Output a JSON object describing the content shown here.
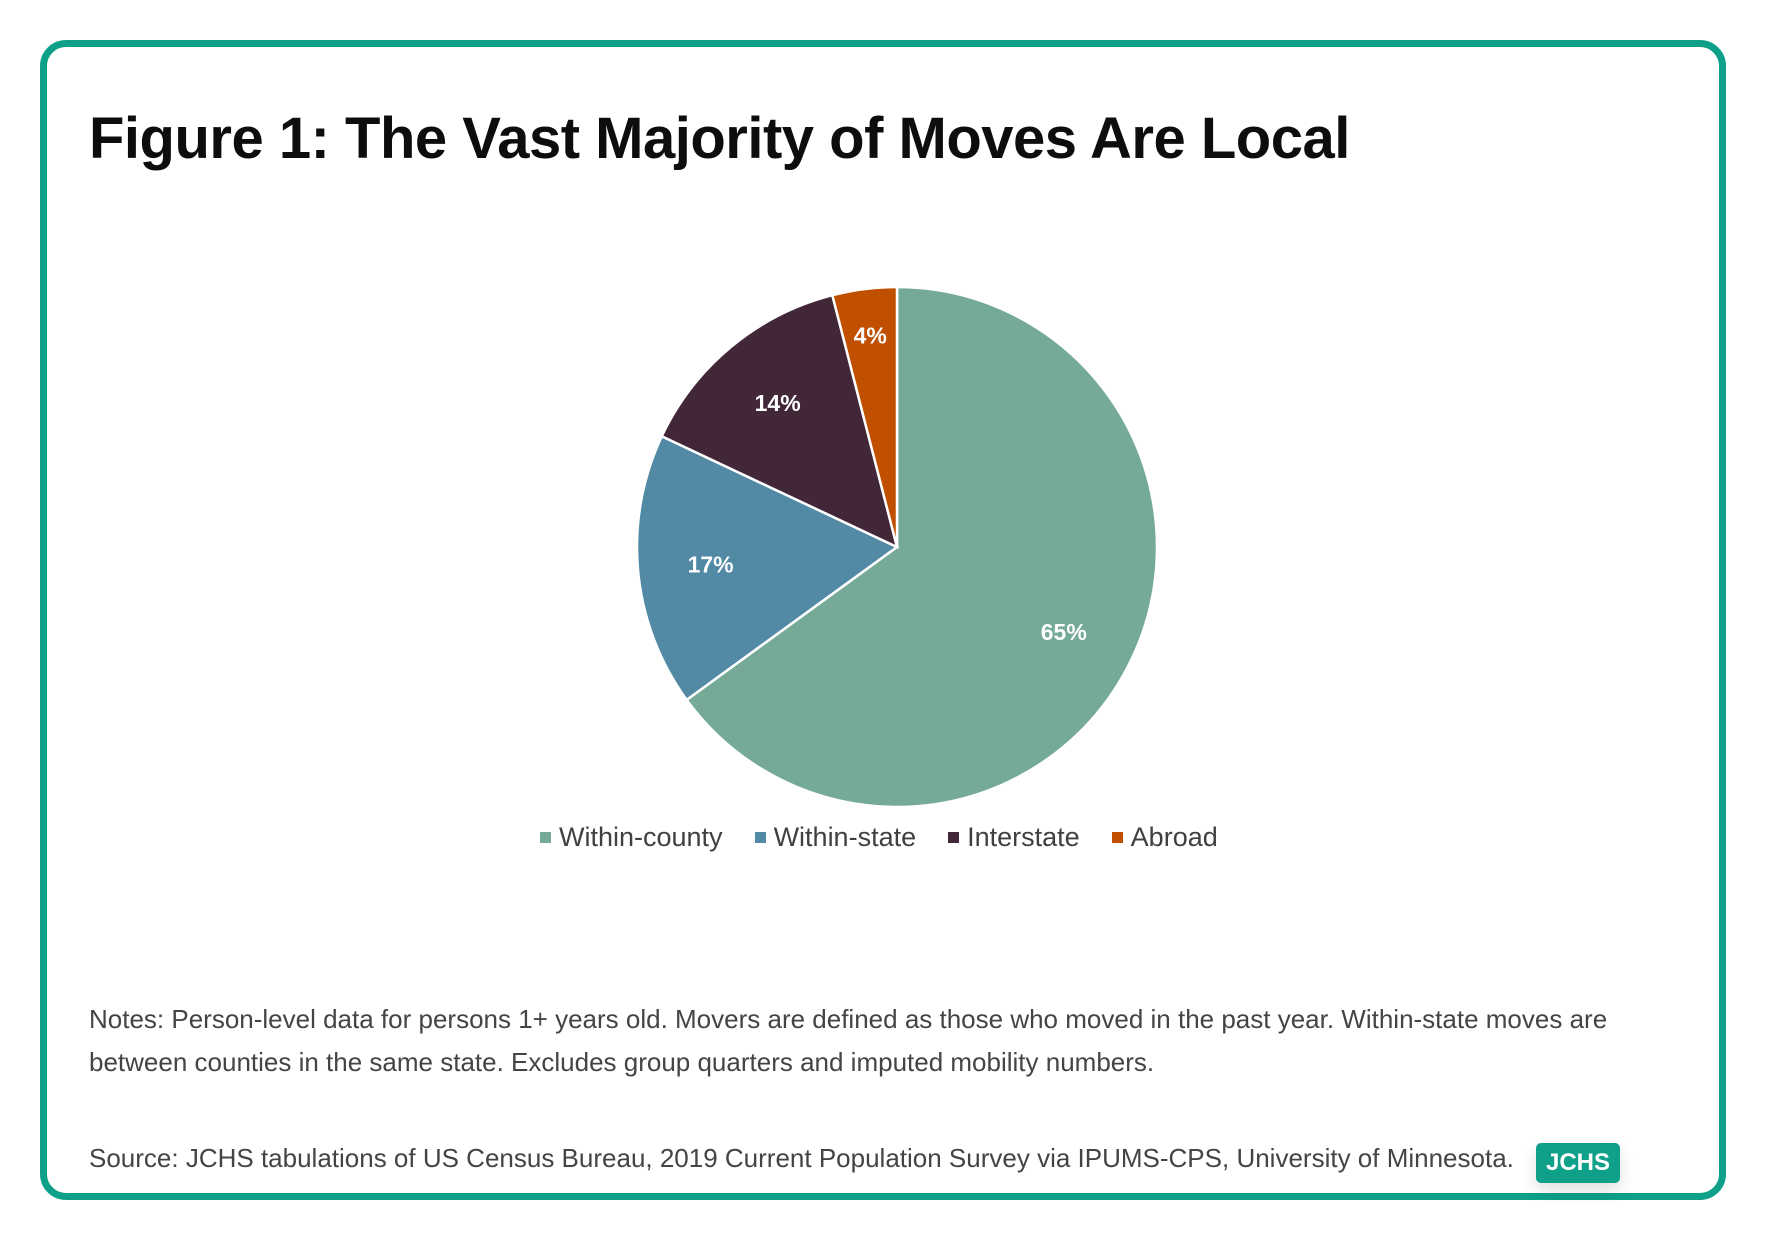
{
  "figure": {
    "title": "Figure 1: The Vast Majority of Moves Are Local",
    "notes": "Notes: Person-level data for persons 1+ years old. Movers are defined as those who moved in the past year. Within-state moves are between counties in the same state. Excludes group quarters and imputed mobility numbers.",
    "source": "Source: JCHS tabulations of US Census Bureau, 2019 Current Population Survey via IPUMS-CPS, University of Minnesota.",
    "badge": "JCHS",
    "accent_color": "#0fa08a"
  },
  "chart_data": {
    "type": "pie",
    "categories": [
      "Within-county",
      "Within-state",
      "Interstate",
      "Abroad"
    ],
    "values": [
      65,
      17,
      14,
      4
    ],
    "data_labels": [
      "65%",
      "17%",
      "14%",
      "4%"
    ],
    "colors": [
      "#75ab96",
      "#528aa5",
      "#422739",
      "#c04f00"
    ],
    "legend_position": "bottom",
    "start": "12 o'clock",
    "direction": "clockwise"
  }
}
